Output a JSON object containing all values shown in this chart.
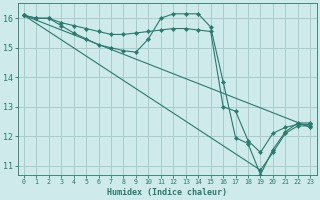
{
  "title": "",
  "xlabel": "Humidex (Indice chaleur)",
  "xlim": [
    -0.5,
    23.5
  ],
  "ylim": [
    10.7,
    16.5
  ],
  "xticks": [
    0,
    1,
    2,
    3,
    4,
    5,
    6,
    7,
    8,
    9,
    10,
    11,
    12,
    13,
    14,
    15,
    16,
    17,
    18,
    19,
    20,
    21,
    22,
    23
  ],
  "yticks": [
    11,
    12,
    13,
    14,
    15,
    16
  ],
  "bg_color": "#ceeaea",
  "line_color": "#2a7a6e",
  "grid_color": "#aacccc",
  "figsize": [
    3.2,
    2.0
  ],
  "dpi": 100,
  "lines": [
    {
      "x": [
        0,
        1,
        2,
        3,
        4,
        5,
        6,
        7,
        8,
        9,
        10,
        11,
        12,
        13,
        14,
        15,
        16,
        17,
        18,
        19,
        20,
        21,
        22,
        23
      ],
      "y": [
        16.1,
        16.0,
        16.0,
        15.85,
        15.75,
        15.65,
        15.55,
        15.45,
        15.45,
        15.5,
        15.55,
        15.6,
        15.65,
        15.65,
        15.6,
        15.55,
        13.0,
        12.85,
        11.85,
        11.45,
        12.1,
        12.3,
        12.4,
        12.4
      ]
    },
    {
      "x": [
        0,
        1,
        2,
        3,
        4,
        5,
        6,
        7,
        8,
        9,
        10,
        11,
        12,
        13,
        14,
        15,
        16,
        17,
        18,
        19,
        20,
        21,
        22,
        23
      ],
      "y": [
        16.1,
        16.0,
        16.0,
        15.75,
        15.5,
        15.3,
        15.1,
        15.0,
        14.9,
        14.85,
        15.3,
        16.0,
        16.15,
        16.15,
        16.15,
        15.7,
        13.85,
        11.95,
        11.75,
        10.7,
        11.55,
        12.15,
        12.45,
        12.45
      ]
    },
    {
      "x": [
        0,
        23
      ],
      "y": [
        16.1,
        12.3
      ]
    },
    {
      "x": [
        0,
        19,
        20,
        21,
        22,
        23
      ],
      "y": [
        16.1,
        10.85,
        11.45,
        12.1,
        12.35,
        12.35
      ]
    }
  ]
}
